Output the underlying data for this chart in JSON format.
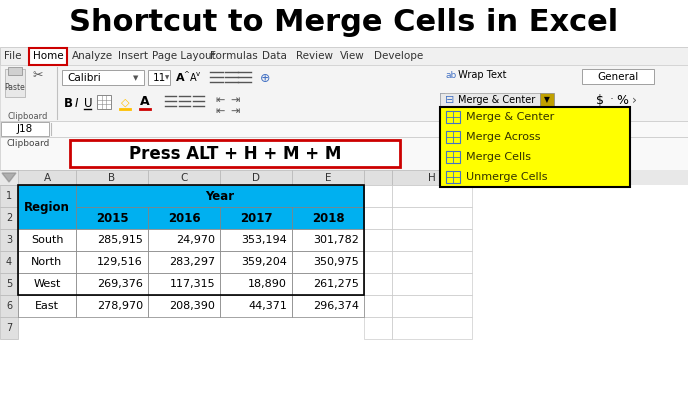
{
  "title": "Shortcut to Merge Cells in Excel",
  "title_fontsize": 22,
  "bg_color": "#ffffff",
  "ribbon_tabs": [
    "File",
    "Home",
    "Analyze",
    "Insert",
    "Page Layout",
    "Formulas",
    "Data",
    "Review",
    "View",
    "Develope"
  ],
  "formula_bar_text": "J18",
  "shortcut_text": "Press ALT + H + M + M",
  "dropdown_items": [
    "Merge & Center",
    "Merge Across",
    "Merge Cells",
    "Unmerge Cells"
  ],
  "dropdown_bg": "#ffff00",
  "dropdown_border": "#000000",
  "cell_bg_blue": "#00b0f0",
  "cell_bg_white": "#ffffff",
  "cell_border": "#808080",
  "col_header_bg": "#d4d4d4",
  "row_header_bg": "#d4d4d4",
  "table_data_rows": [
    [
      "South",
      "285,915",
      "24,970",
      "353,194",
      "301,782"
    ],
    [
      "North",
      "129,516",
      "283,297",
      "359,204",
      "350,975"
    ],
    [
      "West",
      "269,376",
      "117,315",
      "18,890",
      "261,275"
    ],
    [
      "East",
      "278,970",
      "208,390",
      "44,371",
      "296,374"
    ]
  ],
  "years": [
    "2015",
    "2016",
    "2017",
    "2018"
  ],
  "regions": [
    "South",
    "North",
    "West",
    "East"
  ],
  "row_labels": [
    "1",
    "2",
    "3",
    "4",
    "5",
    "6",
    "7"
  ],
  "col_labels": [
    "A",
    "B",
    "C",
    "D",
    "E",
    "",
    "H"
  ]
}
